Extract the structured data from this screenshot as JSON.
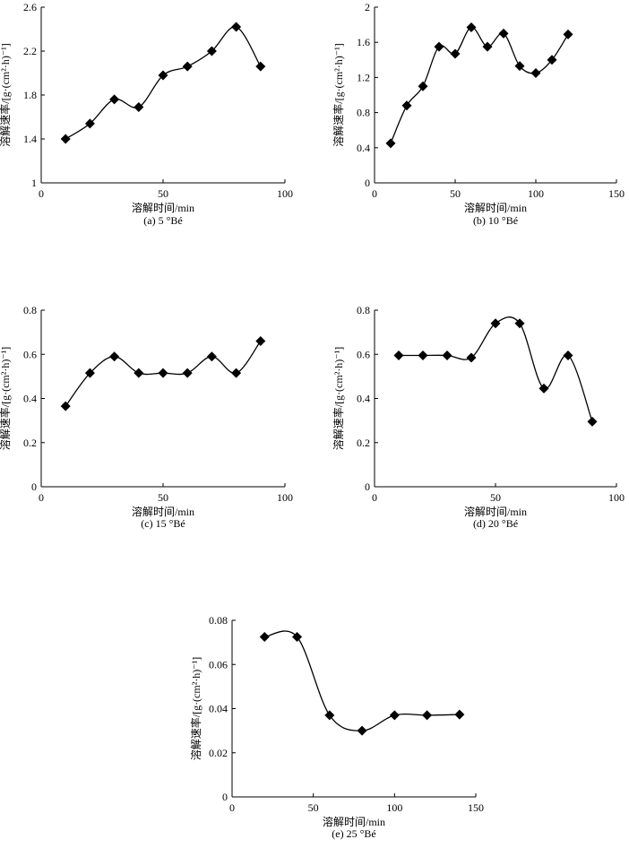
{
  "chart_data": [
    {
      "type": "line",
      "caption": "(a) 5 °Bé",
      "xlabel": "溶解时间/min",
      "ylabel": "溶解速率/[g·(cm²·h)⁻¹]",
      "xlim": [
        0,
        100
      ],
      "ylim": [
        1,
        2.6
      ],
      "xticks": [
        "0",
        "50",
        "100"
      ],
      "yticks": [
        "1",
        "1.4",
        "1.8",
        "2.2",
        "2.6"
      ],
      "x": [
        10,
        20,
        30,
        40,
        50,
        60,
        70,
        80,
        90
      ],
      "y": [
        1.4,
        1.54,
        1.76,
        1.69,
        1.98,
        2.06,
        2.2,
        2.42,
        2.06
      ],
      "marker": "diamond",
      "color": "#000000",
      "grid": false
    },
    {
      "type": "line",
      "caption": "(b) 10 °Bé",
      "xlabel": "溶解时间/min",
      "ylabel": "溶解速率/[g·(cm²·h)⁻¹]",
      "xlim": [
        0,
        150
      ],
      "ylim": [
        0,
        2
      ],
      "xticks": [
        "0",
        "50",
        "100",
        "150"
      ],
      "yticks": [
        "0",
        "0.4",
        "0.8",
        "1.2",
        "1.6",
        "2"
      ],
      "x": [
        10,
        20,
        30,
        40,
        50,
        60,
        70,
        80,
        90,
        100,
        110,
        120
      ],
      "y": [
        0.45,
        0.88,
        1.1,
        1.55,
        1.47,
        1.77,
        1.55,
        1.7,
        1.33,
        1.25,
        1.4,
        1.69
      ],
      "marker": "diamond",
      "color": "#000000",
      "grid": false
    },
    {
      "type": "line",
      "caption": "(c) 15 °Bé",
      "xlabel": "溶解时间/min",
      "ylabel": "溶解速率/[g·(cm²·h)⁻¹]",
      "xlim": [
        0,
        100
      ],
      "ylim": [
        0,
        0.8
      ],
      "xticks": [
        "0",
        "50",
        "100"
      ],
      "yticks": [
        "0",
        "0.2",
        "0.4",
        "0.6",
        "0.8"
      ],
      "x": [
        10,
        20,
        30,
        40,
        50,
        60,
        70,
        80,
        90
      ],
      "y": [
        0.365,
        0.515,
        0.59,
        0.515,
        0.515,
        0.515,
        0.59,
        0.515,
        0.66
      ],
      "marker": "diamond",
      "color": "#000000",
      "grid": false
    },
    {
      "type": "line",
      "caption": "(d) 20 °Bé",
      "xlabel": "溶解时间/min",
      "ylabel": "溶解速率/[g·(cm²·h)⁻¹]",
      "xlim": [
        0,
        100
      ],
      "ylim": [
        0,
        0.8
      ],
      "xticks": [
        "0",
        "50",
        "100"
      ],
      "yticks": [
        "0",
        "0.2",
        "0.4",
        "0.6",
        "0.8"
      ],
      "x": [
        10,
        20,
        30,
        40,
        50,
        60,
        70,
        80,
        90
      ],
      "y": [
        0.595,
        0.595,
        0.595,
        0.585,
        0.74,
        0.74,
        0.445,
        0.595,
        0.295
      ],
      "marker": "diamond",
      "color": "#000000",
      "grid": false
    },
    {
      "type": "line",
      "caption": "(e) 25 °Bé",
      "xlabel": "溶解时间/min",
      "ylabel": "溶解速率/[g·(cm²·h)⁻¹]",
      "xlim": [
        0,
        150
      ],
      "ylim": [
        0,
        0.08
      ],
      "xticks": [
        "0",
        "50",
        "100",
        "150"
      ],
      "yticks": [
        "0",
        "0.02",
        "0.04",
        "0.06",
        "0.08"
      ],
      "x": [
        20,
        40,
        60,
        80,
        100,
        120,
        140
      ],
      "y": [
        0.0725,
        0.0725,
        0.037,
        0.03,
        0.037,
        0.037,
        0.0373
      ],
      "marker": "diamond",
      "color": "#000000",
      "grid": false
    }
  ]
}
